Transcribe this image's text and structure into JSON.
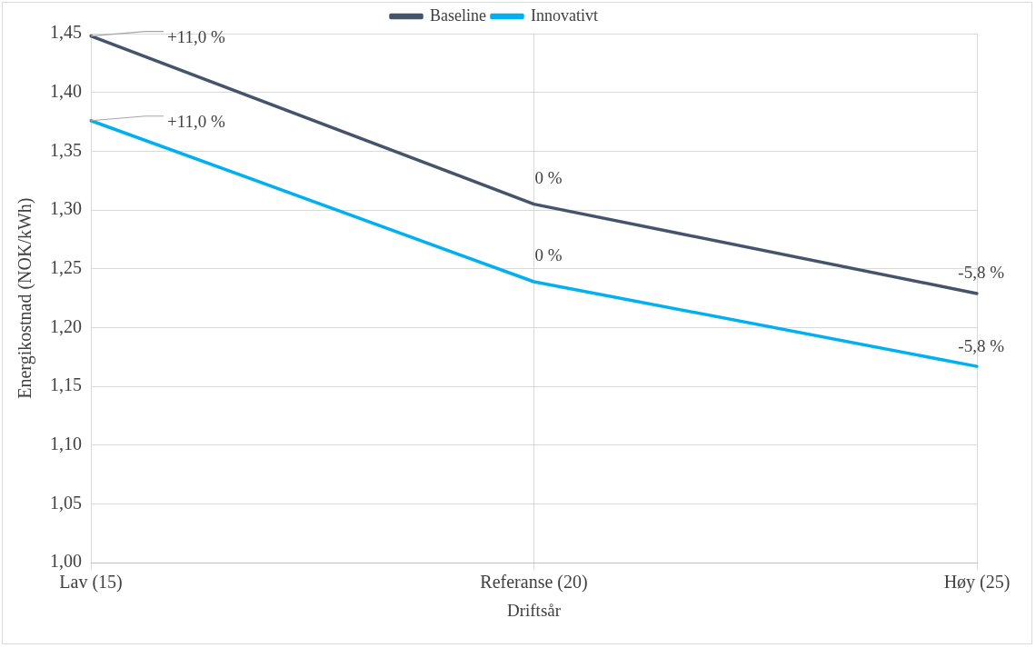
{
  "chart_data": {
    "type": "line",
    "xlabel": "Driftsår",
    "ylabel": "Energikostnad (NOK/kWh)",
    "categories": [
      "Lav (15)",
      "Referanse (20)",
      "Høy (25)"
    ],
    "series": [
      {
        "name": "Baseline",
        "color": "#44546a",
        "values": [
          1.448,
          1.305,
          1.229
        ]
      },
      {
        "name": "Innovativt",
        "color": "#00b0f0",
        "values": [
          1.376,
          1.239,
          1.167
        ]
      }
    ],
    "annotations": [
      {
        "text": "+11,0 %",
        "x": "Lav (15)",
        "y": 1.448
      },
      {
        "text": "0 %",
        "x": "Referanse (20)",
        "y": 1.305
      },
      {
        "text": "-5,8 %",
        "x": "Høy (25)",
        "y": 1.229
      },
      {
        "text": "+11,0 %",
        "x": "Lav (15)",
        "y": 1.376
      },
      {
        "text": "0 %",
        "x": "Referanse (20)",
        "y": 1.239
      },
      {
        "text": "-5,8 %",
        "x": "Høy (25)",
        "y": 1.167
      }
    ],
    "ylim": [
      1.0,
      1.45
    ],
    "yticks": [
      {
        "value": 1.0,
        "label": "1,00"
      },
      {
        "value": 1.05,
        "label": "1,05"
      },
      {
        "value": 1.1,
        "label": "1,10"
      },
      {
        "value": 1.15,
        "label": "1,15"
      },
      {
        "value": 1.2,
        "label": "1,20"
      },
      {
        "value": 1.25,
        "label": "1,25"
      },
      {
        "value": 1.3,
        "label": "1,30"
      },
      {
        "value": 1.35,
        "label": "1,35"
      },
      {
        "value": 1.4,
        "label": "1,40"
      },
      {
        "value": 1.45,
        "label": "1,45"
      }
    ],
    "grid": true,
    "legend": "top",
    "marker": "none",
    "line_style": "solid"
  }
}
